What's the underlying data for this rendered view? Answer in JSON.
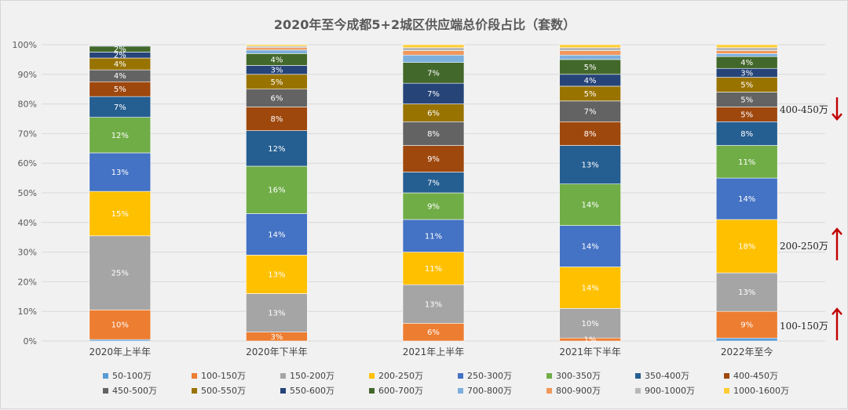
{
  "chart_data": {
    "type": "bar",
    "stacked": true,
    "normalized": true,
    "title": "2020年至今成都5+2城区供应端总价段占比（套数）",
    "xlabel": "",
    "ylabel": "",
    "ylim": [
      0,
      100
    ],
    "yticks": [
      "0%",
      "10%",
      "20%",
      "30%",
      "40%",
      "50%",
      "60%",
      "70%",
      "80%",
      "90%",
      "100%"
    ],
    "categories": [
      "2020年上半年",
      "2020年下半年",
      "2021年上半年",
      "2021年下半年",
      "2022年至今"
    ],
    "series": [
      {
        "name": "50-100万",
        "color": "#5b9bd5",
        "values": [
          0.5,
          0,
          0,
          0,
          1
        ]
      },
      {
        "name": "100-150万",
        "color": "#ed7d31",
        "values": [
          10,
          3,
          6,
          1,
          9
        ]
      },
      {
        "name": "150-200万",
        "color": "#a5a5a5",
        "values": [
          25,
          13,
          13,
          10,
          13
        ]
      },
      {
        "name": "200-250万",
        "color": "#ffc000",
        "values": [
          15,
          13,
          11,
          14,
          18
        ]
      },
      {
        "name": "250-300万",
        "color": "#4472c4",
        "values": [
          13,
          14,
          11,
          14,
          14
        ]
      },
      {
        "name": "300-350万",
        "color": "#70ad47",
        "values": [
          12,
          16,
          9,
          14,
          11
        ]
      },
      {
        "name": "350-400万",
        "color": "#255e91",
        "values": [
          7,
          12,
          7,
          13,
          8
        ]
      },
      {
        "name": "400-450万",
        "color": "#9e480e",
        "values": [
          5,
          8,
          9,
          8,
          5
        ]
      },
      {
        "name": "450-500万",
        "color": "#636363",
        "values": [
          4,
          6,
          8,
          7,
          5
        ]
      },
      {
        "name": "500-550万",
        "color": "#997300",
        "values": [
          4,
          5,
          6,
          5,
          5
        ]
      },
      {
        "name": "550-600万",
        "color": "#264478",
        "values": [
          2,
          3,
          7,
          4,
          3
        ]
      },
      {
        "name": "600-700万",
        "color": "#43682b",
        "values": [
          2,
          4,
          7,
          5,
          4
        ]
      },
      {
        "name": "700-800万",
        "color": "#7cafdd",
        "values": [
          0.3,
          1.2,
          2.5,
          1.5,
          1
        ]
      },
      {
        "name": "800-900万",
        "color": "#f1975a",
        "values": [
          0.2,
          0.8,
          1.5,
          1.5,
          1
        ]
      },
      {
        "name": "900-1000万",
        "color": "#b7b7b7",
        "values": [
          0,
          0.5,
          1.0,
          1.0,
          1
        ]
      },
      {
        "name": "1000-1600万",
        "color": "#ffcd33",
        "values": [
          0,
          0.5,
          1.0,
          1.0,
          1
        ]
      }
    ],
    "data_labels": [
      {
        "series": "100-150万",
        "labels": [
          "10%",
          "3%",
          "6%",
          "1%",
          "9%"
        ]
      },
      {
        "series": "150-200万",
        "labels": [
          "25%",
          "13%",
          "13%",
          "10%",
          "13%"
        ]
      },
      {
        "series": "200-250万",
        "labels": [
          "15%",
          "13%",
          "11%",
          "14%",
          "18%"
        ]
      },
      {
        "series": "250-300万",
        "labels": [
          "13%",
          "14%",
          "11%",
          "14%",
          "14%"
        ]
      },
      {
        "series": "300-350万",
        "labels": [
          "12%",
          "16%",
          "9%",
          "14%",
          "11%"
        ]
      },
      {
        "series": "350-400万",
        "labels": [
          "7%",
          "12%",
          "7%",
          "13%",
          "8%"
        ]
      },
      {
        "series": "400-450万",
        "labels": [
          "5%",
          "8%",
          "9%",
          "8%",
          "5%"
        ]
      },
      {
        "series": "450-500万",
        "labels": [
          "4%",
          "6%",
          "8%",
          "7%",
          "5%"
        ]
      },
      {
        "series": "500-550万",
        "labels": [
          "4%",
          "5%",
          "6%",
          "5%",
          "5%"
        ]
      },
      {
        "series": "550-600万",
        "labels": [
          "2%",
          "3%",
          "7%",
          "4%",
          "3%"
        ]
      },
      {
        "series": "600-700万",
        "labels": [
          "2%",
          "4%",
          "7%",
          "5%",
          "4%"
        ]
      }
    ],
    "annotations": [
      {
        "text": "400-450万",
        "arrow": "down",
        "color": "#c00000",
        "level": 78
      },
      {
        "text": "200-250万",
        "arrow": "up",
        "color": "#c00000",
        "level": 32
      },
      {
        "text": "100-150万",
        "arrow": "up",
        "color": "#c00000",
        "level": 5
      }
    ],
    "legend_position": "bottom"
  }
}
